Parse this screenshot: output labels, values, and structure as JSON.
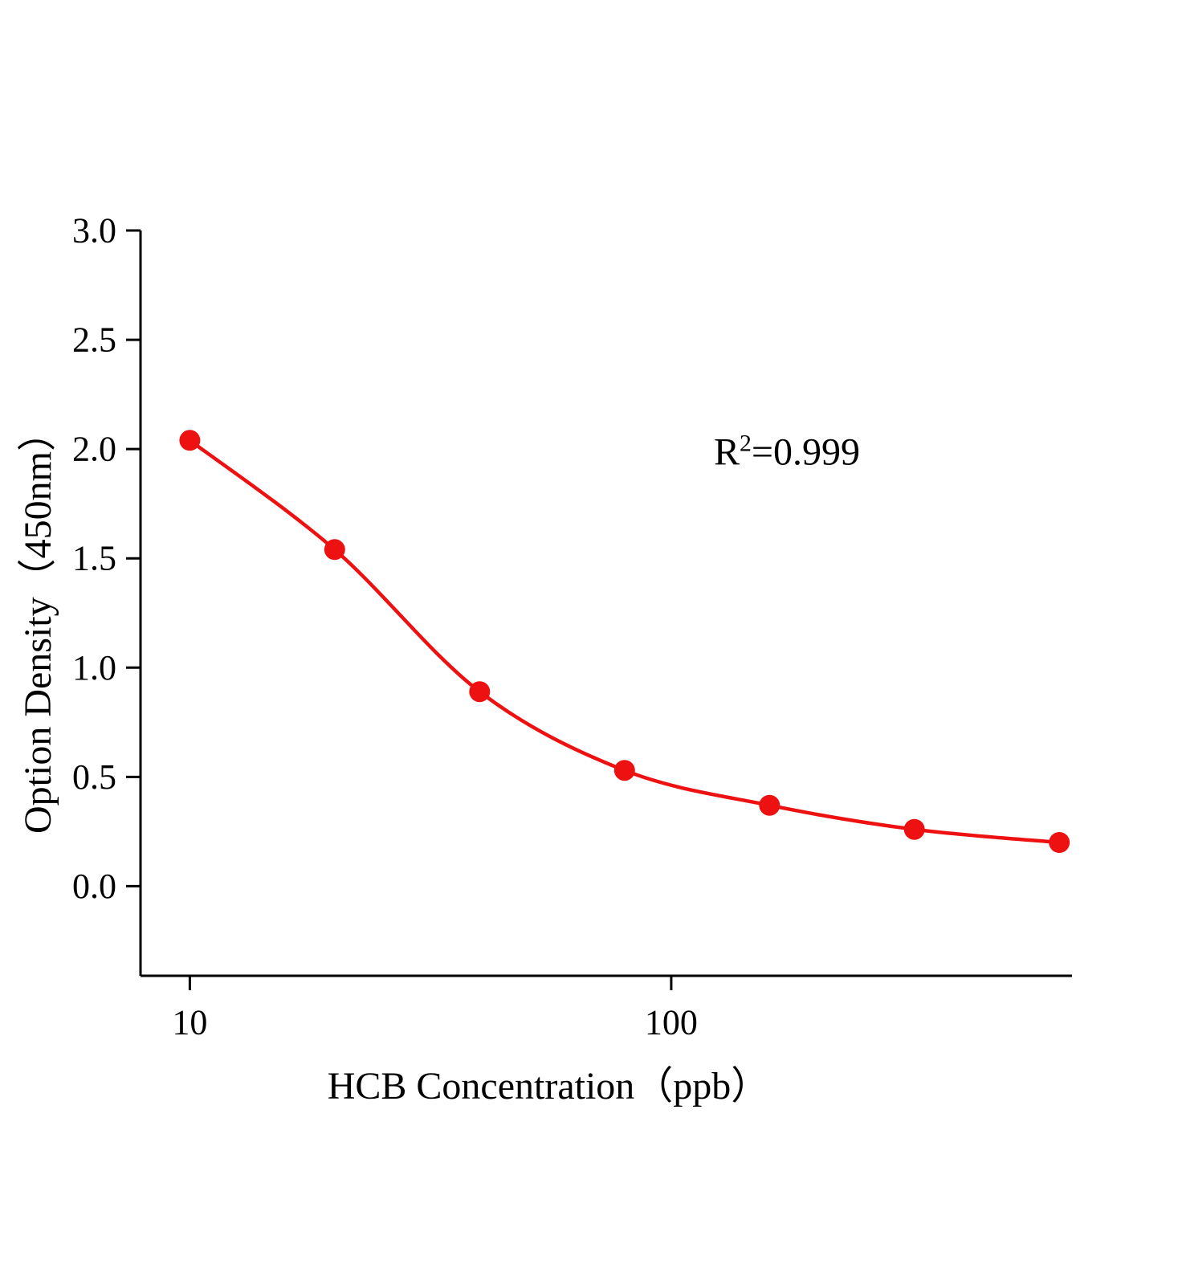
{
  "chart_data": {
    "type": "scatter",
    "title": "",
    "xlabel": "HCB Concentration（ppb）",
    "ylabel": "Option Density（450nm）",
    "annotation": {
      "base": "R",
      "exponent": "2",
      "value": "=0.999"
    },
    "x": [
      10,
      20,
      40,
      80,
      160,
      320,
      640
    ],
    "y": [
      2.04,
      1.54,
      0.89,
      0.53,
      0.37,
      0.26,
      0.2
    ],
    "xscale": "log",
    "xlim": [
      7.9,
      680
    ],
    "ylim": [
      -0.41,
      3.0
    ],
    "yticks": [
      0.0,
      0.5,
      1.0,
      1.5,
      2.0,
      2.5,
      3.0
    ],
    "xticks": [
      10,
      100
    ],
    "grid": false,
    "legend_position": "none",
    "curve_color": "#ee1111",
    "point_color": "#ee1111",
    "axis_color": "#000000",
    "point_radius": 13,
    "curve_width": 4.5
  }
}
